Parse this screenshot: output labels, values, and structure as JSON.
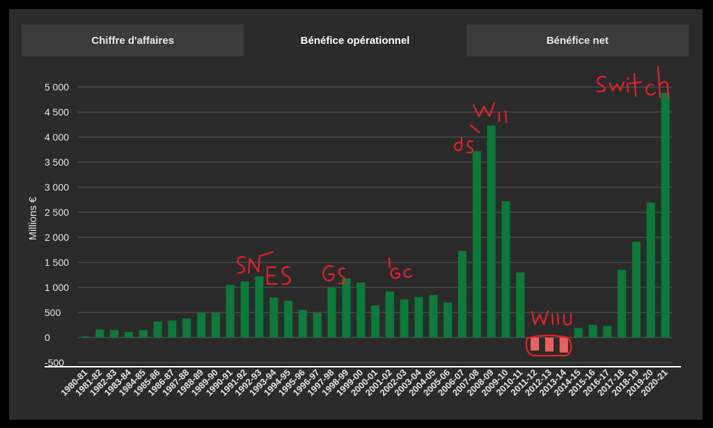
{
  "tabs": [
    {
      "label": "Chiffre d'affaires",
      "active": false
    },
    {
      "label": "Bénéfice opérationnel",
      "active": true
    },
    {
      "label": "Bénéfice net",
      "active": false
    }
  ],
  "colors": {
    "bar": "#0b7a3a",
    "bar_highlight": "#e86060",
    "grid": "#5a5a5a",
    "axis": "#ffffff",
    "annotation": "#e8202a"
  },
  "chart_data": {
    "type": "bar",
    "ylabel": "Millions €",
    "ylim": [
      -500,
      5000
    ],
    "yticks": [
      -500,
      0,
      500,
      1000,
      1500,
      2000,
      2500,
      3000,
      3500,
      4000,
      4500,
      5000
    ],
    "ytick_labels": [
      "-500",
      "0",
      "500",
      "1 000",
      "1 500",
      "2 000",
      "2 500",
      "3 000",
      "3 500",
      "4 000",
      "4 500",
      "5 000"
    ],
    "grid": true,
    "categories": [
      "1980-81",
      "1981-82",
      "1982-83",
      "1983-84",
      "1984-85",
      "1985-86",
      "1986-87",
      "1987-88",
      "1988-89",
      "1989-90",
      "1990-91",
      "1991-92",
      "1992-93",
      "1993-94",
      "1994-95",
      "1995-96",
      "1996-97",
      "1997-98",
      "1998-99",
      "1999-00",
      "2000-01",
      "2001-02",
      "2002-03",
      "2003-04",
      "2004-05",
      "2005-06",
      "2006-07",
      "2007-08",
      "2008-09",
      "2009-10",
      "2010-11",
      "2011-12",
      "2012-13",
      "2013-14",
      "2014-15",
      "2015-16",
      "2016-17",
      "2017-18",
      "2018-19",
      "2019-20",
      "2020-21"
    ],
    "values": [
      20,
      160,
      150,
      110,
      150,
      320,
      340,
      380,
      490,
      490,
      1050,
      1120,
      1220,
      800,
      730,
      550,
      490,
      990,
      1180,
      1100,
      640,
      920,
      760,
      810,
      850,
      700,
      1730,
      3720,
      4230,
      2720,
      1300,
      -260,
      -280,
      -300,
      190,
      250,
      230,
      1350,
      1910,
      2690,
      4880
    ],
    "highlighted_categories": [
      "2011-12",
      "2012-13",
      "2013-14"
    ],
    "annotations": [
      "SN",
      "ES",
      "GS",
      "GC",
      "ds",
      "Wii",
      "wiiU",
      "Switch"
    ]
  }
}
